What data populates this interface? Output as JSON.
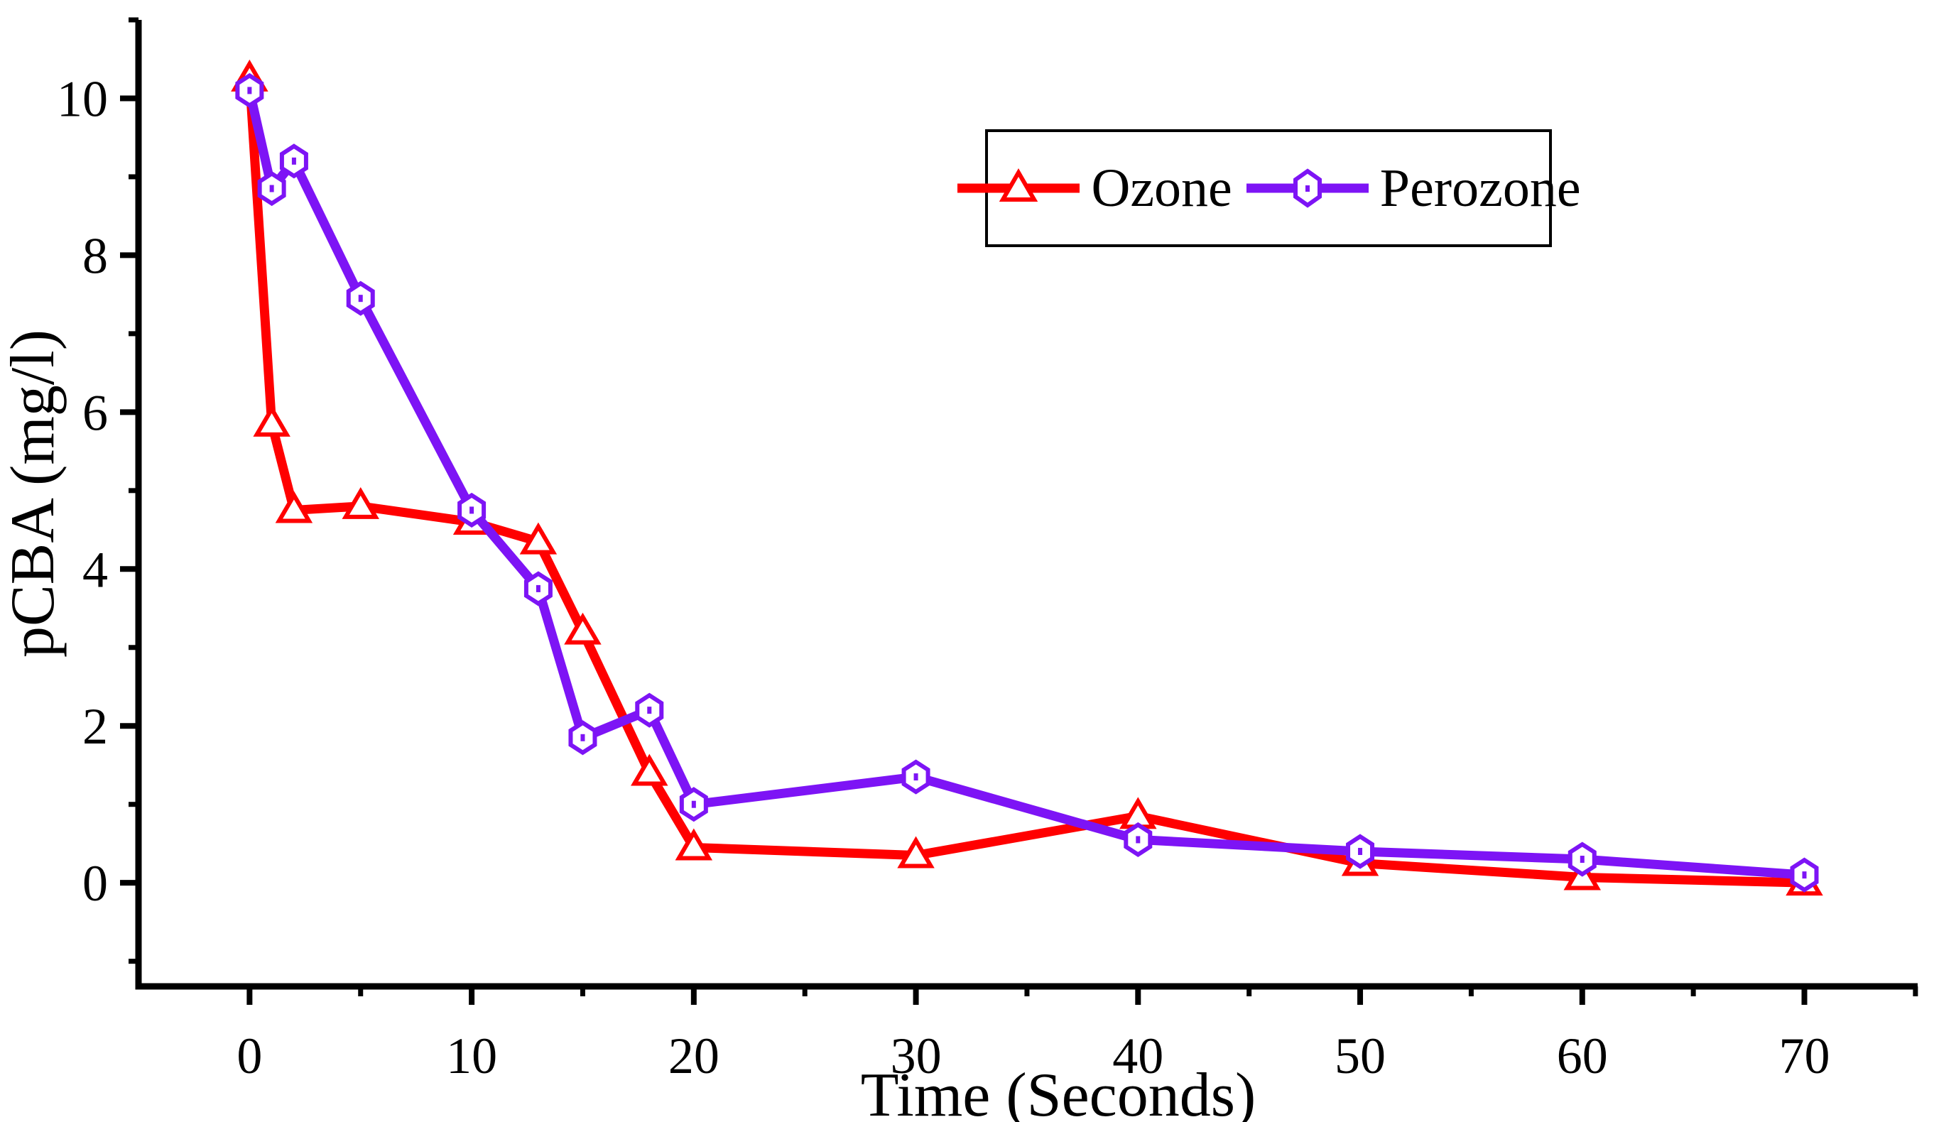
{
  "chart_data": {
    "type": "line",
    "title": "",
    "xlabel": "Time (Seconds)",
    "ylabel": "pCBA (mg/l)",
    "xlim": [
      -5,
      75.1
    ],
    "ylim": [
      -1.32,
      11.0
    ],
    "grid": false,
    "legend_position": "inside top-right",
    "x_ticks": [
      0,
      10,
      20,
      30,
      40,
      50,
      60,
      70
    ],
    "x_minor_ticks": [
      5,
      15,
      25,
      35,
      45,
      55,
      65,
      75
    ],
    "y_ticks": [
      0,
      2,
      4,
      6,
      8,
      10
    ],
    "y_minor_ticks": [
      -1,
      1,
      3,
      5,
      7,
      9,
      11
    ],
    "series": [
      {
        "name": "Ozone",
        "color": "#ff0000",
        "marker": "triangle-up",
        "x": [
          0,
          1,
          2,
          5,
          10,
          13,
          15,
          18,
          20,
          30,
          40,
          50,
          60,
          70
        ],
        "y": [
          10.25,
          5.85,
          4.75,
          4.8,
          4.6,
          4.35,
          3.2,
          1.4,
          0.45,
          0.35,
          0.85,
          0.25,
          0.07,
          0.0
        ]
      },
      {
        "name": "Perozone",
        "color": "#7d14f5",
        "marker": "hexagon",
        "x": [
          0,
          1,
          2,
          5,
          10,
          13,
          15,
          18,
          20,
          30,
          40,
          50,
          60,
          70
        ],
        "y": [
          10.1,
          8.85,
          9.2,
          7.45,
          4.75,
          3.75,
          1.85,
          2.2,
          1.0,
          1.35,
          0.55,
          0.4,
          0.3,
          0.1
        ]
      }
    ]
  },
  "axes": {
    "x_label": "Time (Seconds)",
    "y_label": "pCBA (mg/l)"
  },
  "legend": {
    "items": [
      {
        "label": "Ozone",
        "color": "#ff0000",
        "marker": "triangle-up"
      },
      {
        "label": "Perozone",
        "color": "#7d14f5",
        "marker": "hexagon"
      }
    ]
  }
}
